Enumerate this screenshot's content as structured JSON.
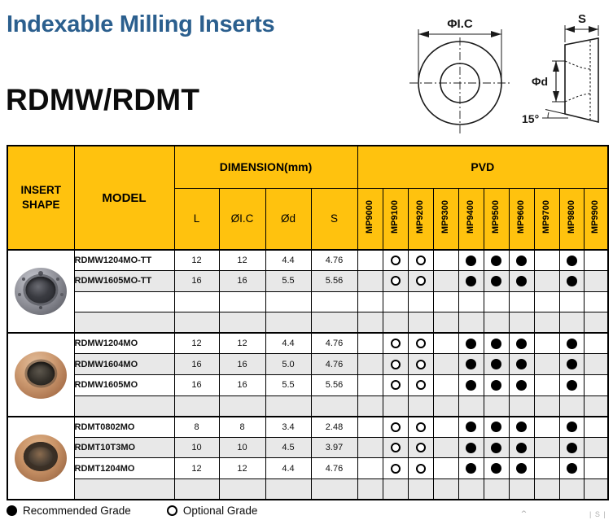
{
  "page": {
    "title": "Indexable Milling Inserts",
    "series": "RDMW/RDMT"
  },
  "drawings": {
    "front_view": {
      "dim_label": "ΦI.C"
    },
    "side_view": {
      "dim_top": "S",
      "dim_left": "Φd",
      "angle_label": "15°"
    }
  },
  "table": {
    "headers": {
      "insert_shape": "INSERT SHAPE",
      "model": "MODEL",
      "dimension": "DIMENSION(mm)",
      "pvd": "PVD",
      "dims": [
        "L",
        "ØI.C",
        "Ød",
        "S"
      ],
      "grades": [
        "MP9000",
        "MP9100",
        "MP9200",
        "MP9300",
        "MP9400",
        "MP9500",
        "MP9600",
        "MP9700",
        "MP9800",
        "MP9900"
      ]
    },
    "grade_key": {
      "R": "recommended",
      "O": "optional"
    },
    "groups": [
      {
        "insert_style": "insert-silver",
        "rows": [
          {
            "model": "RDMW1204MO-TT",
            "dims": [
              "12",
              "12",
              "4.4",
              "4.76"
            ],
            "grades": [
              "",
              "O",
              "O",
              "",
              "R",
              "R",
              "R",
              "",
              "R",
              ""
            ]
          },
          {
            "model": "RDMW1605MO-TT",
            "dims": [
              "16",
              "16",
              "5.5",
              "5.56"
            ],
            "grades": [
              "",
              "O",
              "O",
              "",
              "R",
              "R",
              "R",
              "",
              "R",
              ""
            ]
          },
          {
            "model": "",
            "dims": [
              "",
              "",
              "",
              ""
            ],
            "grades": [
              "",
              "",
              "",
              "",
              "",
              "",
              "",
              "",
              "",
              ""
            ]
          },
          {
            "model": "",
            "dims": [
              "",
              "",
              "",
              ""
            ],
            "grades": [
              "",
              "",
              "",
              "",
              "",
              "",
              "",
              "",
              "",
              ""
            ]
          }
        ]
      },
      {
        "insert_style": "insert-bronze",
        "rows": [
          {
            "model": "RDMW1204MO",
            "dims": [
              "12",
              "12",
              "4.4",
              "4.76"
            ],
            "grades": [
              "",
              "O",
              "O",
              "",
              "R",
              "R",
              "R",
              "",
              "R",
              ""
            ]
          },
          {
            "model": "RDMW1604MO",
            "dims": [
              "16",
              "16",
              "5.0",
              "4.76"
            ],
            "grades": [
              "",
              "O",
              "O",
              "",
              "R",
              "R",
              "R",
              "",
              "R",
              ""
            ]
          },
          {
            "model": "RDMW1605MO",
            "dims": [
              "16",
              "16",
              "5.5",
              "5.56"
            ],
            "grades": [
              "",
              "O",
              "O",
              "",
              "R",
              "R",
              "R",
              "",
              "R",
              ""
            ]
          },
          {
            "model": "",
            "dims": [
              "",
              "",
              "",
              ""
            ],
            "grades": [
              "",
              "",
              "",
              "",
              "",
              "",
              "",
              "",
              "",
              ""
            ]
          }
        ]
      },
      {
        "insert_style": "insert-bronze-dark",
        "rows": [
          {
            "model": "RDMT0802MO",
            "dims": [
              "8",
              "8",
              "3.4",
              "2.48"
            ],
            "grades": [
              "",
              "O",
              "O",
              "",
              "R",
              "R",
              "R",
              "",
              "R",
              ""
            ]
          },
          {
            "model": "RDMT10T3MO",
            "dims": [
              "10",
              "10",
              "4.5",
              "3.97"
            ],
            "grades": [
              "",
              "O",
              "O",
              "",
              "R",
              "R",
              "R",
              "",
              "R",
              ""
            ]
          },
          {
            "model": "RDMT1204MO",
            "dims": [
              "12",
              "12",
              "4.4",
              "4.76"
            ],
            "grades": [
              "",
              "O",
              "O",
              "",
              "R",
              "R",
              "R",
              "",
              "R",
              ""
            ]
          },
          {
            "model": "",
            "dims": [
              "",
              "",
              "",
              ""
            ],
            "grades": [
              "",
              "",
              "",
              "",
              "",
              "",
              "",
              "",
              "",
              ""
            ]
          }
        ]
      }
    ]
  },
  "legend": {
    "recommended": {
      "symbol": "filled-circle",
      "label": "Recommended Grade"
    },
    "optional": {
      "symbol": "open-circle",
      "label": "Optional Grade"
    }
  },
  "watermark": {
    "caret": "⌃",
    "text": "| S |"
  },
  "colors": {
    "header_yellow": "#ffc20e",
    "title_blue": "#2b5f8e",
    "row_alt_gray": "#e8e8e8",
    "grade_dot": "#000000"
  }
}
